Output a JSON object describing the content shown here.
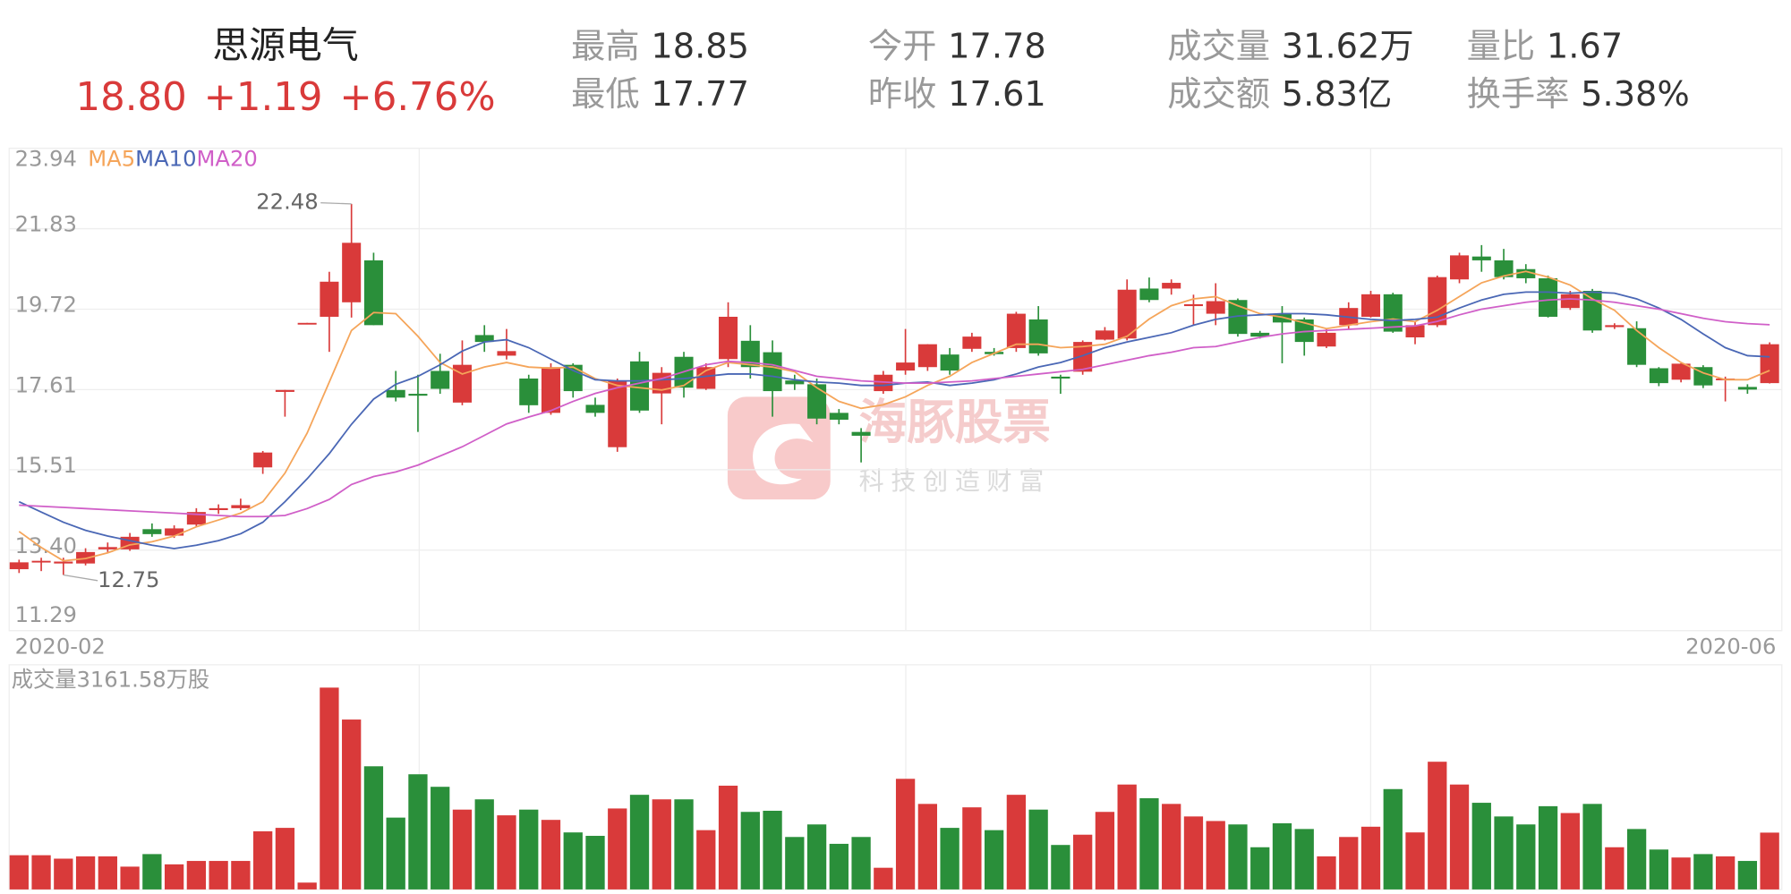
{
  "quote": {
    "name": "思源电气",
    "price": "18.80",
    "change": "+1.19",
    "change_percent": "+6.76%",
    "stats": [
      {
        "label": "最高",
        "value": "18.85"
      },
      {
        "label": "今开",
        "value": "17.78"
      },
      {
        "label": "成交量",
        "value": "31.62万"
      },
      {
        "label": "量比",
        "value": "1.67"
      },
      {
        "label": "最低",
        "value": "17.77"
      },
      {
        "label": "昨收",
        "value": "17.61"
      },
      {
        "label": "成交额",
        "value": "5.83亿"
      },
      {
        "label": "换手率",
        "value": "5.38%"
      }
    ]
  },
  "watermark": {
    "title": "海豚股票",
    "subtitle": "科技创造财富"
  },
  "chart_data": [
    {
      "type": "candlestick",
      "up_color": "#d93a3a",
      "down_color": "#2a8f3a",
      "grid": true,
      "categories": [
        "2020-02",
        null,
        null,
        null,
        null,
        null,
        null,
        null,
        null,
        null,
        null,
        null,
        null,
        null,
        null,
        null,
        null,
        null,
        null,
        null,
        null,
        null,
        null,
        null,
        null,
        null,
        null,
        null,
        null,
        null,
        null,
        null,
        null,
        null,
        null,
        null,
        null,
        null,
        null,
        null,
        null,
        null,
        null,
        null,
        null,
        null,
        null,
        null,
        null,
        null,
        null,
        null,
        null,
        null,
        null,
        null,
        null,
        null,
        null,
        null,
        null,
        null,
        null,
        null,
        null,
        null,
        null,
        null,
        null,
        null,
        null,
        null,
        null,
        null,
        null,
        null,
        null,
        null,
        null,
        "2020-06"
      ],
      "open": [
        12.9,
        13.08,
        13.05,
        13.05,
        13.42,
        13.42,
        13.95,
        13.78,
        14.07,
        14.45,
        14.5,
        15.57,
        17.55,
        19.33,
        19.52,
        19.9,
        21.0,
        17.6,
        17.5,
        18.1,
        17.27,
        19.04,
        18.5,
        17.9,
        17.0,
        18.26,
        17.21,
        16.1,
        18.35,
        17.51,
        18.47,
        17.63,
        18.41,
        18.89,
        18.59,
        17.85,
        17.75,
        17.0,
        16.5,
        17.57,
        18.11,
        18.2,
        18.53,
        18.68,
        18.6,
        18.7,
        19.45,
        17.95,
        18.08,
        18.92,
        18.95,
        20.26,
        20.26,
        19.8,
        19.6,
        19.96,
        19.1,
        19.6,
        19.45,
        18.74,
        19.3,
        19.52,
        20.11,
        18.98,
        19.3,
        20.5,
        21.1,
        21.0,
        20.77,
        20.53,
        19.75,
        20.2,
        19.25,
        19.22,
        18.17,
        17.87,
        18.2,
        17.86,
        17.68,
        17.78
      ],
      "high": [
        13.15,
        13.2,
        13.2,
        13.45,
        13.6,
        13.85,
        14.1,
        14.05,
        14.5,
        14.6,
        14.75,
        16.0,
        17.6,
        19.36,
        20.7,
        22.48,
        21.2,
        18.1,
        18.0,
        18.55,
        18.9,
        19.3,
        19.2,
        18.0,
        18.3,
        18.3,
        17.4,
        17.9,
        18.6,
        18.2,
        18.6,
        18.3,
        19.9,
        19.3,
        18.9,
        18.0,
        17.9,
        17.1,
        16.6,
        18.1,
        19.2,
        18.8,
        18.7,
        19.1,
        18.7,
        19.65,
        19.8,
        18.0,
        18.9,
        19.25,
        20.5,
        20.55,
        20.5,
        20.1,
        20.4,
        20.0,
        19.15,
        19.8,
        19.5,
        19.2,
        19.9,
        20.2,
        20.15,
        19.4,
        20.6,
        21.2,
        21.4,
        21.3,
        20.9,
        20.6,
        20.2,
        20.25,
        19.35,
        19.4,
        18.2,
        18.3,
        18.25,
        17.95,
        17.75,
        18.85
      ],
      "low": [
        12.8,
        12.85,
        12.75,
        13.0,
        13.35,
        13.38,
        13.75,
        13.72,
        14.0,
        14.35,
        14.45,
        15.4,
        16.9,
        19.33,
        18.6,
        19.5,
        19.3,
        17.3,
        16.5,
        17.5,
        17.2,
        18.6,
        18.4,
        17.0,
        16.95,
        17.4,
        16.9,
        15.98,
        17.0,
        16.7,
        17.4,
        17.6,
        18.2,
        17.9,
        16.9,
        17.6,
        16.7,
        16.7,
        15.7,
        17.5,
        18.0,
        18.1,
        18.0,
        18.6,
        18.5,
        18.6,
        18.5,
        17.5,
        18.0,
        18.9,
        18.9,
        19.9,
        20.1,
        19.3,
        19.3,
        19.0,
        18.95,
        18.3,
        18.5,
        18.7,
        19.2,
        19.5,
        19.1,
        18.8,
        19.25,
        20.4,
        20.7,
        20.5,
        20.4,
        19.5,
        19.7,
        19.1,
        19.2,
        18.2,
        17.7,
        17.8,
        17.65,
        17.3,
        17.5,
        17.77
      ],
      "close": [
        13.08,
        13.12,
        13.1,
        13.35,
        13.48,
        13.75,
        13.82,
        13.97,
        14.4,
        14.5,
        14.58,
        15.96,
        17.6,
        19.36,
        20.44,
        21.46,
        19.3,
        17.4,
        17.45,
        17.63,
        18.26,
        18.86,
        18.62,
        17.2,
        18.2,
        17.57,
        17.0,
        17.84,
        17.06,
        18.05,
        17.66,
        18.2,
        19.52,
        18.2,
        17.57,
        17.75,
        16.85,
        16.82,
        16.4,
        18.0,
        18.32,
        18.8,
        18.11,
        19.0,
        18.54,
        19.6,
        18.56,
        17.9,
        18.86,
        19.16,
        20.23,
        19.96,
        20.41,
        19.85,
        19.93,
        19.07,
        19.0,
        19.37,
        18.86,
        19.1,
        19.75,
        20.11,
        19.13,
        19.3,
        20.56,
        21.13,
        21.0,
        20.56,
        20.53,
        19.52,
        20.11,
        19.16,
        19.3,
        18.26,
        17.78,
        18.29,
        17.72,
        17.9,
        17.61,
        18.8
      ],
      "ma": [
        {
          "name": "MA5",
          "color": "#f5a55a",
          "values": [
            13.89,
            13.47,
            13.12,
            13.18,
            13.33,
            13.54,
            13.62,
            13.77,
            14.01,
            14.19,
            14.37,
            14.67,
            15.42,
            16.47,
            17.81,
            19.16,
            19.63,
            19.6,
            19.01,
            18.32,
            18.02,
            18.2,
            18.32,
            18.2,
            18.17,
            18.2,
            17.9,
            17.72,
            17.66,
            17.6,
            17.72,
            18.11,
            18.32,
            18.26,
            18.2,
            18.08,
            17.66,
            17.3,
            17.12,
            17.21,
            17.42,
            17.72,
            17.96,
            18.32,
            18.56,
            18.8,
            18.8,
            18.71,
            18.74,
            18.8,
            19.01,
            19.46,
            19.81,
            19.99,
            20.05,
            19.81,
            19.6,
            19.51,
            19.36,
            19.21,
            19.3,
            19.39,
            19.46,
            19.39,
            19.69,
            20.05,
            20.41,
            20.59,
            20.71,
            20.56,
            20.35,
            19.99,
            19.69,
            19.16,
            18.71,
            18.32,
            18.05,
            17.87,
            17.87,
            18.11
          ]
        },
        {
          "name": "MA10",
          "color": "#4a67b5",
          "values": [
            14.67,
            14.4,
            14.13,
            13.92,
            13.77,
            13.65,
            13.53,
            13.44,
            13.53,
            13.65,
            13.83,
            14.13,
            14.67,
            15.27,
            15.93,
            16.7,
            17.36,
            17.75,
            17.96,
            18.26,
            18.62,
            18.86,
            18.92,
            18.71,
            18.41,
            18.11,
            17.87,
            17.84,
            17.84,
            17.87,
            17.9,
            17.96,
            18.02,
            18.02,
            17.96,
            17.87,
            17.81,
            17.78,
            17.72,
            17.72,
            17.78,
            17.81,
            17.72,
            17.78,
            17.87,
            18.02,
            18.2,
            18.32,
            18.5,
            18.71,
            18.86,
            18.98,
            19.1,
            19.3,
            19.45,
            19.54,
            19.57,
            19.6,
            19.6,
            19.57,
            19.51,
            19.45,
            19.42,
            19.45,
            19.51,
            19.75,
            19.96,
            20.11,
            20.17,
            20.17,
            20.14,
            20.17,
            20.14,
            19.99,
            19.75,
            19.45,
            19.07,
            18.71,
            18.5,
            18.47
          ]
        },
        {
          "name": "MA20",
          "color": "#d05fc8",
          "values": [
            14.58,
            14.55,
            14.52,
            14.49,
            14.46,
            14.43,
            14.4,
            14.37,
            14.34,
            14.31,
            14.28,
            14.28,
            14.31,
            14.49,
            14.73,
            15.12,
            15.33,
            15.45,
            15.63,
            15.87,
            16.11,
            16.41,
            16.71,
            16.89,
            17.06,
            17.3,
            17.51,
            17.66,
            17.78,
            17.9,
            18.08,
            18.26,
            18.35,
            18.32,
            18.26,
            18.11,
            17.96,
            17.9,
            17.84,
            17.81,
            17.78,
            17.78,
            17.81,
            17.84,
            17.9,
            17.96,
            18.02,
            18.08,
            18.14,
            18.26,
            18.38,
            18.5,
            18.59,
            18.71,
            18.74,
            18.86,
            18.98,
            19.07,
            19.13,
            19.16,
            19.19,
            19.22,
            19.25,
            19.28,
            19.4,
            19.57,
            19.72,
            19.81,
            19.9,
            19.96,
            19.99,
            19.96,
            19.9,
            19.81,
            19.72,
            19.6,
            19.48,
            19.39,
            19.34,
            19.31
          ]
        }
      ],
      "annotations": [
        {
          "index": 15,
          "value": 22.48
        },
        {
          "index": 2,
          "value": 12.75
        }
      ],
      "ylim": [
        11.29,
        23.94
      ],
      "yticks": [
        23.94,
        21.83,
        19.72,
        17.61,
        15.51,
        {
          "value": 13.4,
          "label": "13.40"
        },
        11.29
      ]
    },
    {
      "type": "bar",
      "title": "成交量3161.58万股",
      "ylim": [
        0,
        12500
      ],
      "values": [
        1904,
        1904,
        1713,
        1840,
        1840,
        1269,
        1967,
        1396,
        1586,
        1586,
        1586,
        3236,
        3426,
        381,
        11231,
        9454,
        6853,
        3997,
        6408,
        5711,
        4442,
        5013,
        4124,
        4442,
        3870,
        3173,
        2982,
        4505,
        5266,
        5013,
        5013,
        3299,
        5774,
        4315,
        4378,
        2919,
        3617,
        2538,
        2919,
        1206,
        6155,
        4759,
        3426,
        4568,
        3299,
        5266,
        4442,
        2475,
        3046,
        4315,
        5837,
        5076,
        4759,
        4061,
        3807,
        3617,
        2348,
        3680,
        3363,
        1840,
        2919,
        3490,
        5584,
        3173,
        7106,
        5837,
        4822,
        4061,
        3617,
        4632,
        4251,
        4759,
        2348,
        3363,
        2221,
        1777,
        1967,
        1840,
        1586,
        3161.58
      ]
    }
  ]
}
